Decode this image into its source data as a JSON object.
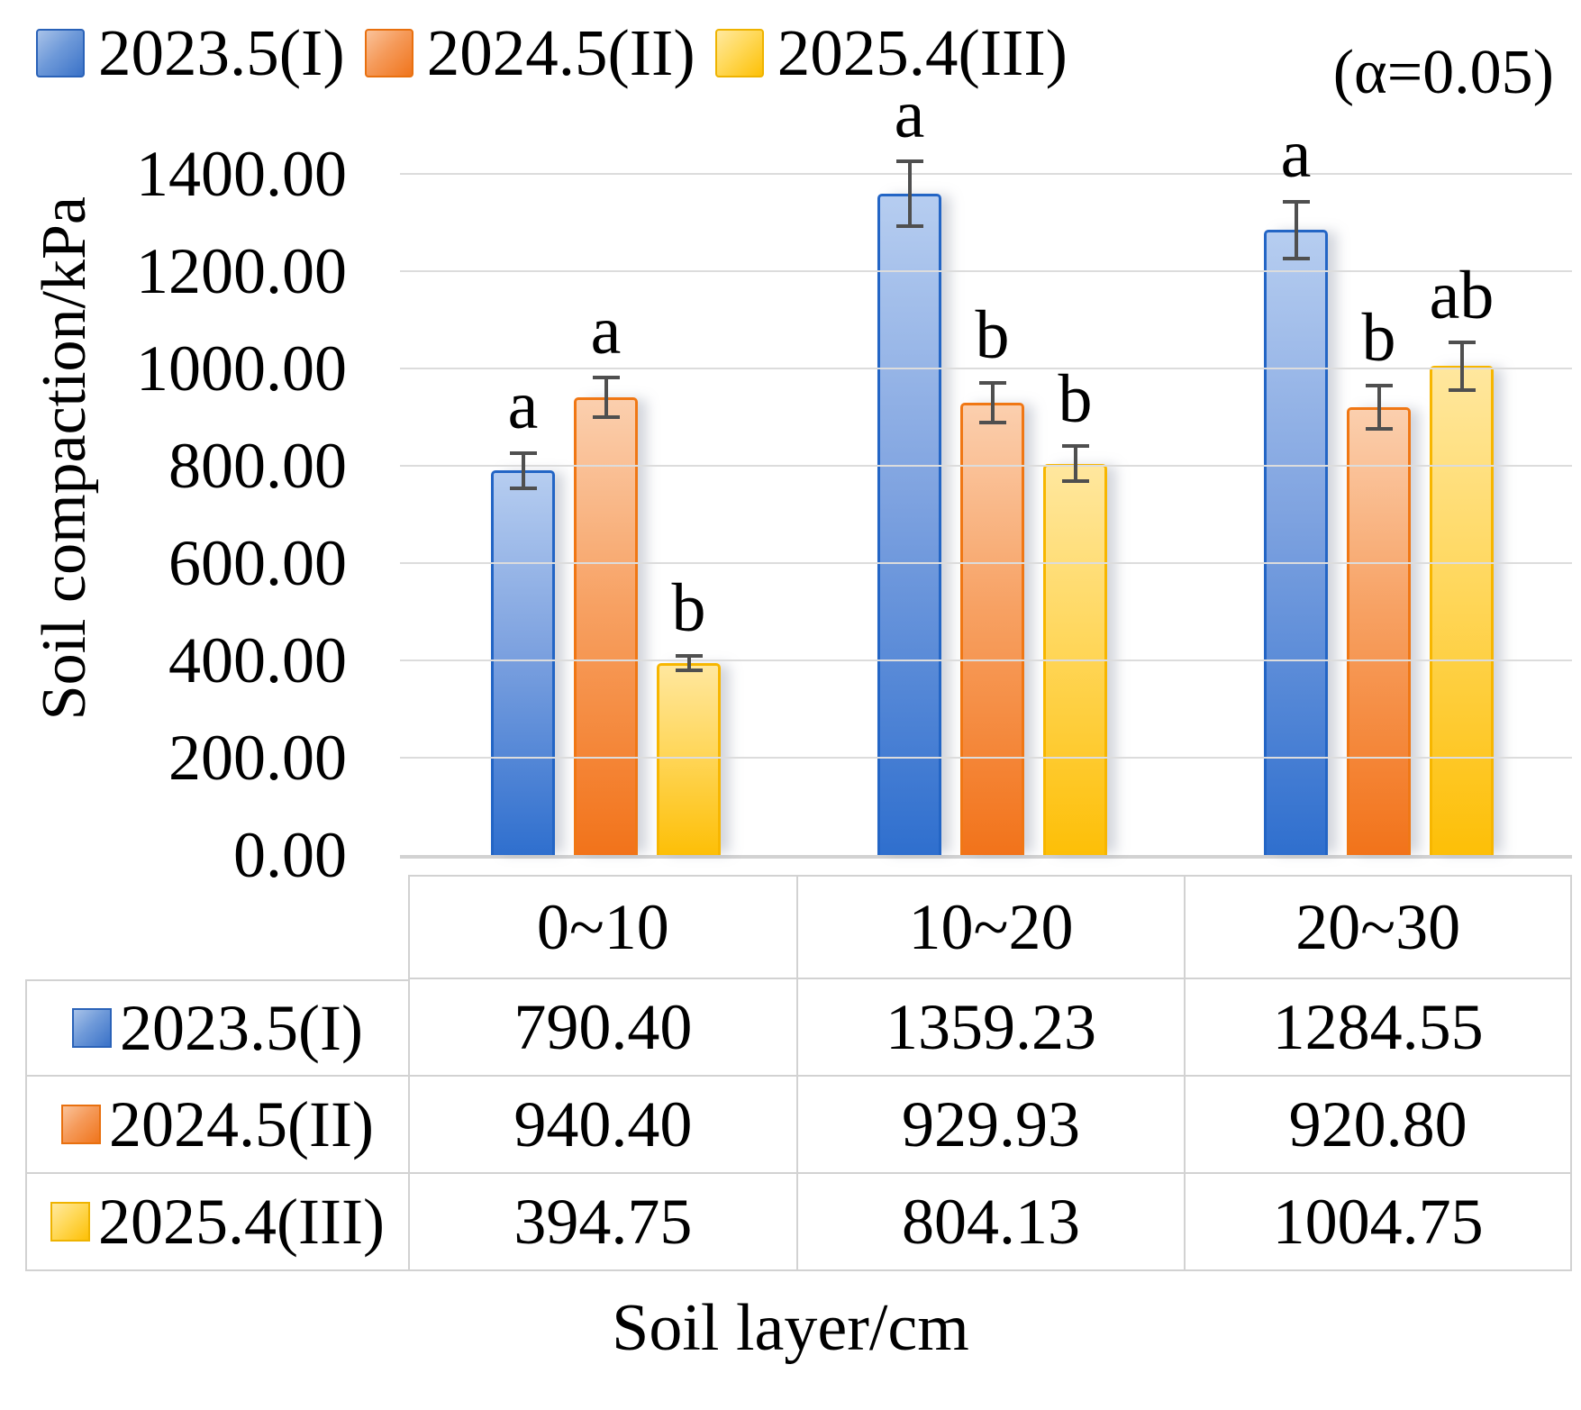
{
  "legend": {
    "items": [
      {
        "label": "2023.5(I)",
        "color": "#4472C4"
      },
      {
        "label": "2024.5(II)",
        "color": "#ED7D31"
      },
      {
        "label": "2025.4(III)",
        "color": "#FFC000"
      }
    ],
    "alpha_note": "(α=0.05)"
  },
  "chart_data": {
    "type": "bar",
    "title": "",
    "xlabel": "Soil layer/cm",
    "ylabel": "Soil compaction/kPa",
    "categories": [
      "0~10",
      "10~20",
      "20~30"
    ],
    "series": [
      {
        "name": "2023.5(I)",
        "color": "#4472C4",
        "values": [
          790.4,
          1359.23,
          1284.55
        ],
        "errors": [
          40,
          70,
          62
        ],
        "sig_letters": [
          "a",
          "a",
          "a"
        ]
      },
      {
        "name": "2024.5(II)",
        "color": "#ED7D31",
        "values": [
          940.4,
          929.93,
          920.8
        ],
        "errors": [
          45,
          45,
          48
        ],
        "sig_letters": [
          "a",
          "b",
          "b"
        ]
      },
      {
        "name": "2025.4(III)",
        "color": "#FFC000",
        "values": [
          394.75,
          804.13,
          1004.75
        ],
        "errors": [
          19,
          40,
          52
        ],
        "sig_letters": [
          "b",
          "b",
          "ab"
        ]
      }
    ],
    "ylim": [
      0,
      1400
    ],
    "y_tick_step": 200,
    "y_tick_labels": [
      "0.00",
      "200.00",
      "400.00",
      "600.00",
      "800.00",
      "1000.00",
      "1200.00",
      "1400.00"
    ],
    "grid": true,
    "legend_position": "top",
    "annotation": "(α=0.05)",
    "error_bar_color": "#4f4f4f",
    "gridline_color": "#dcdcdc"
  },
  "table": {
    "column_headers": [
      "0~10",
      "10~20",
      "20~30"
    ],
    "rows": [
      {
        "label": "2023.5(I)",
        "values": [
          "790.40",
          "1359.23",
          "1284.55"
        ]
      },
      {
        "label": "2024.5(II)",
        "values": [
          "940.40",
          "929.93",
          "920.80"
        ]
      },
      {
        "label": "2025.4(III)",
        "values": [
          "394.75",
          "804.13",
          "1004.75"
        ]
      }
    ]
  }
}
